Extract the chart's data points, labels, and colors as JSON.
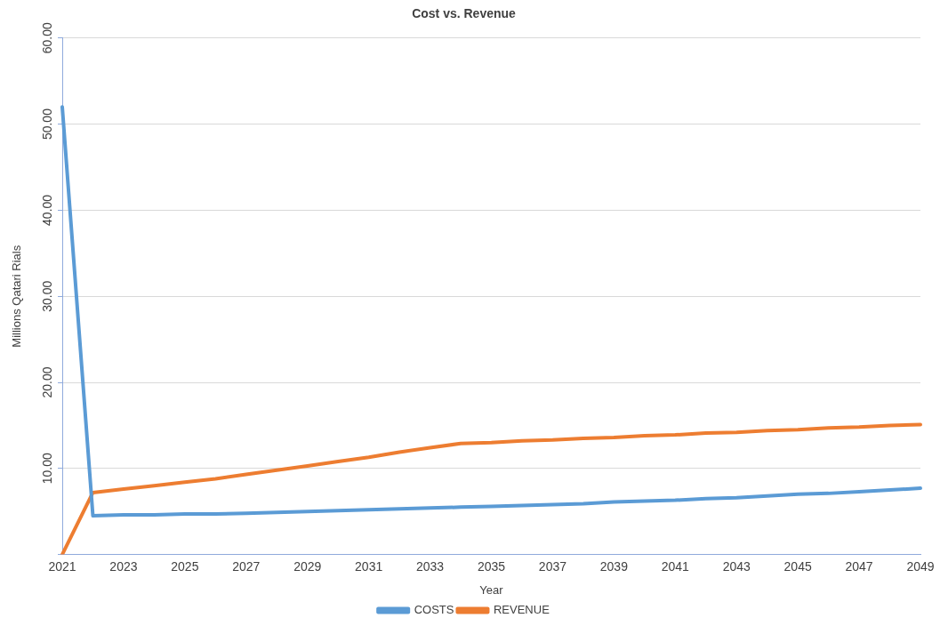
{
  "chart_data": {
    "type": "line",
    "title": "Cost vs. Revenue",
    "xlabel": "Year",
    "ylabel": "Millions Qatari Rials",
    "categories": [
      "2021",
      null,
      "2023",
      null,
      "2025",
      null,
      "2027",
      null,
      "2029",
      null,
      "2031",
      null,
      "2033",
      null,
      "2035",
      null,
      "2037",
      null,
      "2039",
      null,
      "2041",
      null,
      "2043",
      null,
      "2045",
      null,
      "2047",
      null,
      "2049"
    ],
    "series": [
      {
        "name": "COSTS",
        "color": "#5b9bd5",
        "values": [
          52,
          4.5,
          4.6,
          4.6,
          4.7,
          4.7,
          4.8,
          4.9,
          5.0,
          5.1,
          5.2,
          5.3,
          5.4,
          5.5,
          5.6,
          5.7,
          5.8,
          5.9,
          6.1,
          6.2,
          6.3,
          6.5,
          6.6,
          6.8,
          7.0,
          7.1,
          7.3,
          7.5,
          7.7
        ]
      },
      {
        "name": "REVENUE",
        "color": "#ed7d31",
        "values": [
          0,
          7.2,
          7.6,
          8.0,
          8.4,
          8.8,
          9.3,
          9.8,
          10.3,
          10.8,
          11.3,
          11.9,
          12.4,
          12.9,
          13.0,
          13.2,
          13.3,
          13.5,
          13.6,
          13.8,
          13.9,
          14.1,
          14.2,
          14.4,
          14.5,
          14.7,
          14.8,
          15.0,
          15.1
        ]
      }
    ],
    "ylim": [
      0,
      60
    ],
    "yticks": [
      {
        "value": 0,
        "label": null
      },
      {
        "value": 10,
        "label": "10.00"
      },
      {
        "value": 20,
        "label": "20.00"
      },
      {
        "value": 30,
        "label": "30.00"
      },
      {
        "value": 40,
        "label": "40.00"
      },
      {
        "value": 50,
        "label": "50.00"
      },
      {
        "value": 60,
        "label": "60.00"
      }
    ],
    "grid": "y",
    "legend": "bottom",
    "marker": "none",
    "line_style": "solid"
  }
}
